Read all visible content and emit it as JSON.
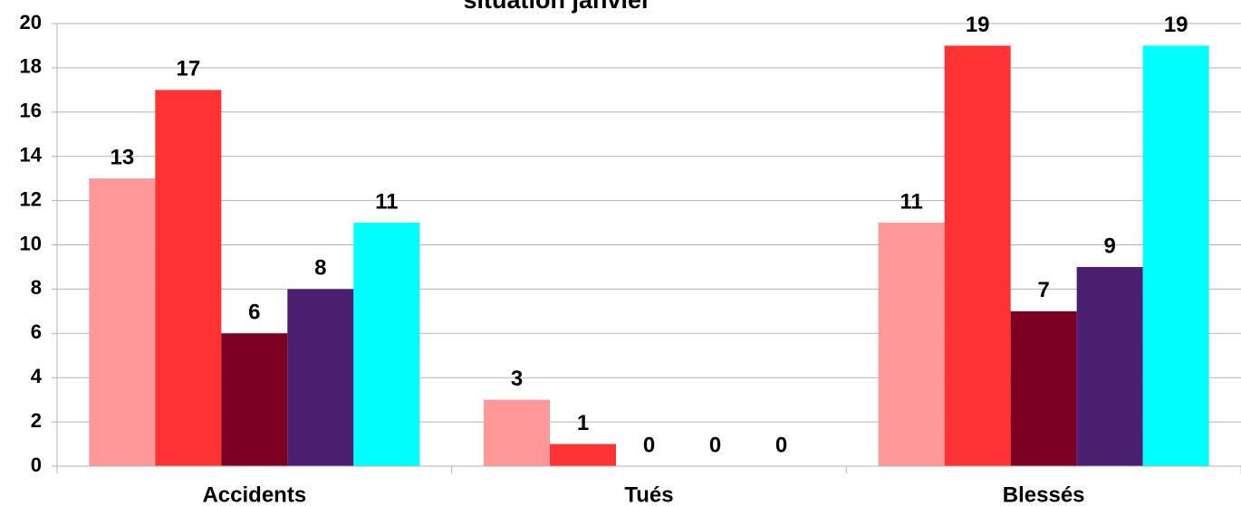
{
  "chart_data": {
    "type": "bar",
    "title": "situation janvier",
    "categories": [
      "Accidents",
      "Tués",
      "Blessés"
    ],
    "series": [
      {
        "color": "#ff9999",
        "values": [
          13,
          3,
          11
        ]
      },
      {
        "color": "#ff3333",
        "values": [
          17,
          1,
          19
        ]
      },
      {
        "color": "#7e0021",
        "values": [
          6,
          0,
          7
        ]
      },
      {
        "color": "#4b1f6f",
        "values": [
          8,
          0,
          9
        ]
      },
      {
        "color": "#00ffff",
        "values": [
          11,
          0,
          19
        ]
      }
    ],
    "ylim": [
      0,
      20
    ],
    "yticks": [
      0,
      2,
      4,
      6,
      8,
      10,
      12,
      14,
      16,
      18,
      20
    ],
    "grid": true
  }
}
